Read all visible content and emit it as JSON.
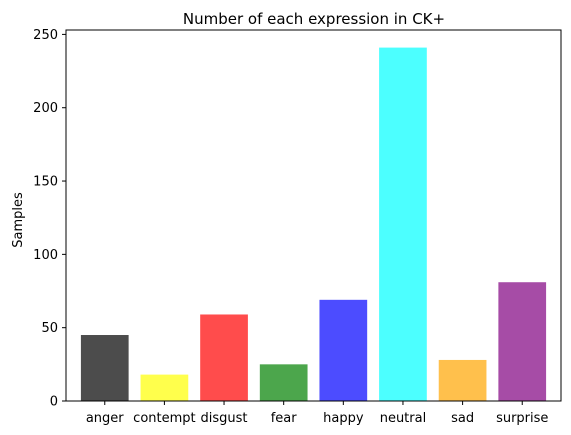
{
  "chart_data": {
    "type": "bar",
    "title": "Number of each expression in CK+",
    "xlabel": "",
    "ylabel": "Samples",
    "categories": [
      "anger",
      "contempt",
      "disgust",
      "fear",
      "happy",
      "neutral",
      "sad",
      "surprise"
    ],
    "values": [
      45,
      18,
      59,
      25,
      69,
      241,
      28,
      81
    ],
    "colors": [
      "#4c4c4c",
      "#ffff4c",
      "#ff4c4c",
      "#4ca64c",
      "#4c4cff",
      "#4cffff",
      "#ffc04c",
      "#a64ca6"
    ],
    "ylim": [
      0,
      253
    ],
    "yticks": [
      0,
      50,
      100,
      150,
      200,
      250
    ],
    "grid": false,
    "legend": "none"
  }
}
